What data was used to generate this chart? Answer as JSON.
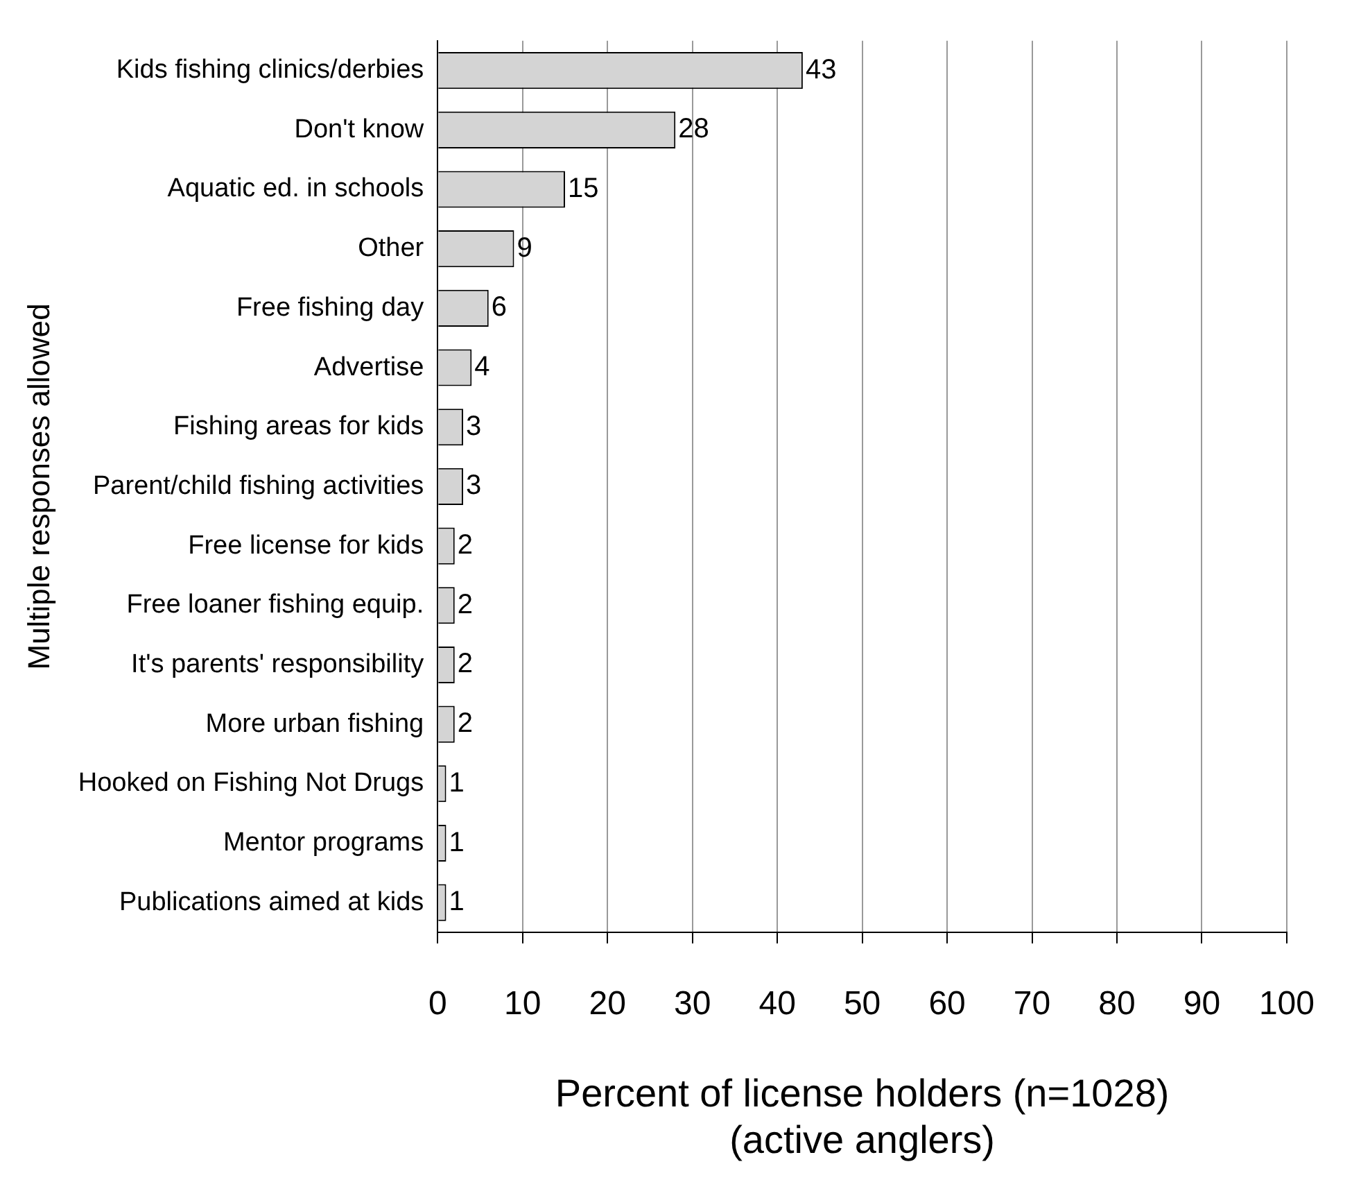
{
  "chart_data": {
    "type": "bar",
    "orientation": "horizontal",
    "xlabel": "Percent of license holders (n=1028)\n(active anglers)",
    "ylabel": "Multiple responses allowed",
    "categories": [
      "Kids fishing clinics/derbies",
      "Don't know",
      "Aquatic ed. in schools",
      "Other",
      "Free fishing day",
      "Advertise",
      "Fishing areas for kids",
      "Parent/child fishing activities",
      "Free license for kids",
      "Free loaner fishing equip.",
      "It's parents' responsibility",
      "More urban fishing",
      "Hooked on Fishing Not Drugs",
      "Mentor programs",
      "Publications aimed at kids"
    ],
    "values": [
      43,
      28,
      15,
      9,
      6,
      4,
      3,
      3,
      2,
      2,
      2,
      2,
      1,
      1,
      1
    ],
    "color": "#d4d4d4",
    "xlim": [
      0,
      100
    ],
    "xticks": [
      0,
      10,
      20,
      30,
      40,
      50,
      60,
      70,
      80,
      90,
      100
    ],
    "grid": "x",
    "legend": false,
    "data_labels": true
  }
}
